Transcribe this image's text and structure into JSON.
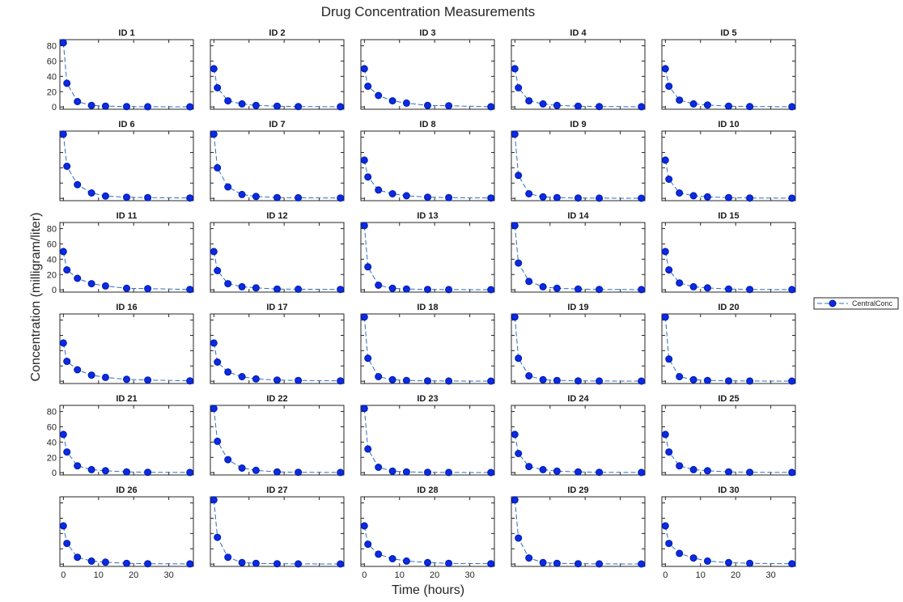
{
  "chart_data": {
    "type": "line",
    "title": "Drug Concentration Measurements",
    "xlabel": "Time (hours)",
    "ylabel": "Concentration (milligram/liter)",
    "legend": {
      "label": "CentralConc",
      "placement": "right"
    },
    "x": [
      0,
      1,
      4,
      8,
      12,
      18,
      24,
      36
    ],
    "xlim": [
      -1,
      37
    ],
    "ylim": [
      -3,
      88
    ],
    "xticks": [
      0,
      10,
      20,
      30
    ],
    "yticks": [
      0,
      20,
      40,
      60,
      80
    ],
    "grid": false,
    "colors": {
      "marker": "#0a2be0",
      "line": "#2e6fb8"
    },
    "panels": [
      {
        "title": "ID 1",
        "values": [
          84,
          31,
          7,
          2,
          1,
          0.5,
          0.3,
          0.2
        ]
      },
      {
        "title": "ID 2",
        "values": [
          50,
          25,
          8,
          4,
          2,
          1,
          0.5,
          0.3
        ]
      },
      {
        "title": "ID 3",
        "values": [
          50,
          27,
          15,
          8,
          5,
          2,
          1.5,
          0.3
        ]
      },
      {
        "title": "ID 4",
        "values": [
          50,
          25,
          8,
          4,
          2,
          1,
          0.5,
          0.3
        ]
      },
      {
        "title": "ID 5",
        "values": [
          50,
          27,
          9,
          4,
          2.5,
          1,
          0.5,
          0.3
        ]
      },
      {
        "title": "ID 6",
        "values": [
          84,
          42,
          18,
          7,
          3,
          1.5,
          1,
          0.5
        ]
      },
      {
        "title": "ID 7",
        "values": [
          84,
          40,
          15,
          5,
          2.5,
          1,
          0.8,
          0.5
        ]
      },
      {
        "title": "ID 8",
        "values": [
          50,
          28,
          11,
          6,
          3.5,
          1.5,
          1,
          0.5
        ]
      },
      {
        "title": "ID 9",
        "values": [
          84,
          30,
          6,
          2,
          1,
          0.5,
          0.3,
          0.2
        ]
      },
      {
        "title": "ID 10",
        "values": [
          50,
          25,
          7,
          3.5,
          2,
          1,
          0.5,
          0.3
        ]
      },
      {
        "title": "ID 11",
        "values": [
          50,
          26,
          15,
          8,
          5,
          2,
          1.5,
          0.5
        ]
      },
      {
        "title": "ID 12",
        "values": [
          50,
          25,
          8,
          4,
          2.5,
          1,
          0.8,
          0.5
        ]
      },
      {
        "title": "ID 13",
        "values": [
          84,
          30,
          6,
          2,
          1,
          0.5,
          0.3,
          0.2
        ]
      },
      {
        "title": "ID 14",
        "values": [
          84,
          35,
          11,
          4,
          2,
          1,
          0.5,
          0.3
        ]
      },
      {
        "title": "ID 15",
        "values": [
          50,
          26,
          9,
          4,
          2.5,
          1,
          0.5,
          0.3
        ]
      },
      {
        "title": "ID 16",
        "values": [
          50,
          26,
          15,
          8,
          5,
          2.5,
          1.5,
          0.5
        ]
      },
      {
        "title": "ID 17",
        "values": [
          50,
          25,
          12,
          6,
          3,
          1.5,
          1,
          0.5
        ]
      },
      {
        "title": "ID 18",
        "values": [
          84,
          30,
          6,
          2,
          1,
          0.5,
          0.3,
          0.2
        ]
      },
      {
        "title": "ID 19",
        "values": [
          84,
          30,
          7,
          2,
          1,
          0.5,
          0.3,
          0.2
        ]
      },
      {
        "title": "ID 20",
        "values": [
          84,
          29,
          6,
          2,
          1,
          0.5,
          0.3,
          0.2
        ]
      },
      {
        "title": "ID 21",
        "values": [
          50,
          27,
          9,
          4,
          2.5,
          1,
          0.5,
          0.3
        ]
      },
      {
        "title": "ID 22",
        "values": [
          84,
          41,
          17,
          6,
          3,
          1,
          0.5,
          0.3
        ]
      },
      {
        "title": "ID 23",
        "values": [
          84,
          31,
          7,
          2,
          1,
          0.5,
          0.3,
          0.2
        ]
      },
      {
        "title": "ID 24",
        "values": [
          50,
          25,
          8,
          4,
          2,
          1,
          0.5,
          0.3
        ]
      },
      {
        "title": "ID 25",
        "values": [
          50,
          27,
          9,
          4,
          2.5,
          1,
          0.5,
          0.3
        ]
      },
      {
        "title": "ID 26",
        "values": [
          50,
          27,
          9,
          4,
          2.5,
          1,
          0.5,
          0.3
        ]
      },
      {
        "title": "ID 27",
        "values": [
          84,
          35,
          9,
          2,
          1,
          0.5,
          0.3,
          0.2
        ]
      },
      {
        "title": "ID 28",
        "values": [
          50,
          26,
          13,
          7,
          4,
          2,
          1,
          0.5
        ]
      },
      {
        "title": "ID 29",
        "values": [
          84,
          34,
          8,
          2,
          1,
          0.5,
          0.3,
          0.2
        ]
      },
      {
        "title": "ID 30",
        "values": [
          50,
          27,
          14,
          8,
          4,
          2,
          1,
          0.5
        ]
      }
    ]
  }
}
